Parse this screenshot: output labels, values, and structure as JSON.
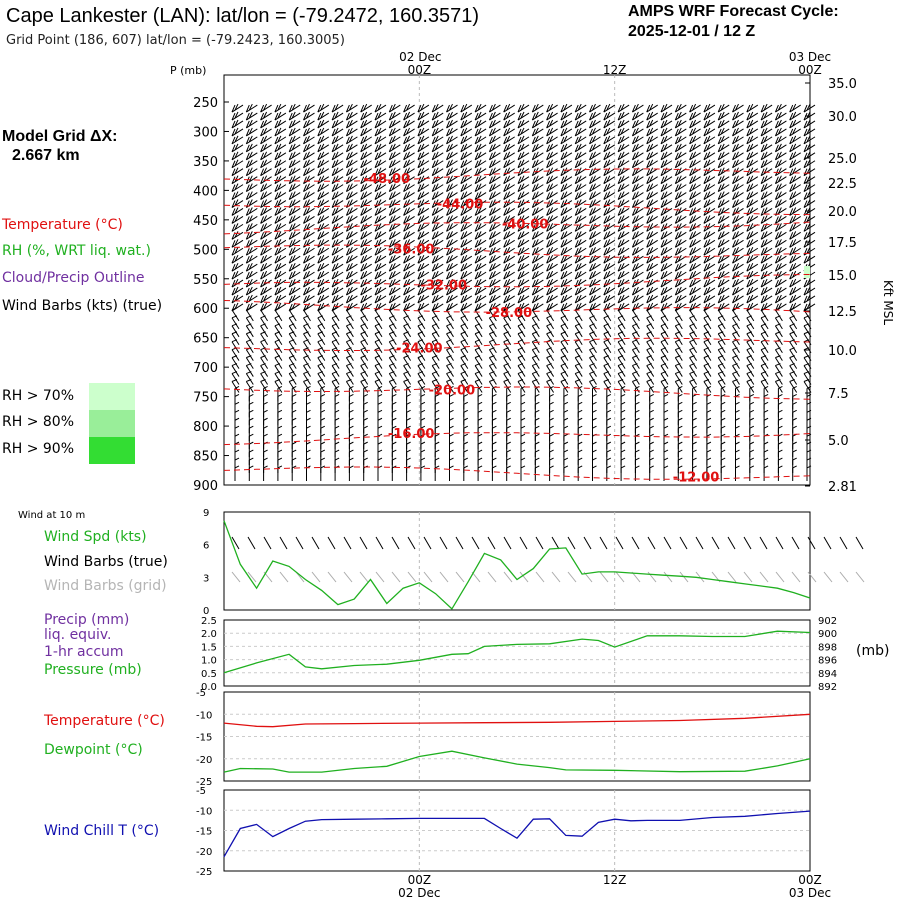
{
  "header": {
    "title": "Cape Lankester (LAN):  lat/lon = (-79.2472, 160.3571)",
    "grid_point": "Grid Point (186, 607) lat/lon = (-79.2423, 160.3005)",
    "cycle_line1": "AMPS WRF Forecast Cycle:",
    "cycle_line2": "2025-12-01 / 12  Z"
  },
  "model_grid": {
    "label": "Model Grid ΔX:",
    "value": "2.667 km"
  },
  "legend": {
    "temperature": "Temperature (°C)",
    "rh": "RH (%, WRT liq. wat.)",
    "cloud": "Cloud/Precip Outline",
    "wind_barbs": "Wind Barbs (kts) (true)",
    "rh70": "RH > 70%",
    "rh80": "RH > 80%",
    "rh90": "RH > 90%"
  },
  "colors": {
    "temperature": "#e01010",
    "rh": "#20b020",
    "cloud": "#7030a0",
    "grid_barbs": "#aaaaaa",
    "windchill": "#1010b0",
    "rh70": "#ccffcc",
    "rh80": "#99ee99",
    "rh90": "#33dd33"
  },
  "time_axis": {
    "top_date_left": "02 Dec",
    "top_date_right": "03 Dec",
    "labels": [
      "00Z",
      "12Z",
      "00Z"
    ],
    "bottom_dates": [
      "02 Dec",
      "03 Dec"
    ]
  },
  "upper_panel": {
    "p_label": "P (mb)",
    "right_label": "Kft MSL"
  },
  "surface_panel": {
    "wind_title": "Wind at 10 m",
    "spd_label": "Wind Spd (kts)",
    "barbs_true": "Wind Barbs (true)",
    "barbs_grid": "Wind Barbs (grid)",
    "precip_label1": "Precip (mm)",
    "precip_label2": "liq. equiv.",
    "precip_label3": "1-hr accum",
    "pressure_label": "Pressure (mb)",
    "pressure_unit": "(mb)",
    "temp_label": "Temperature (°C)",
    "dew_label": "Dewpoint (°C)",
    "windchill_label": "Wind Chill T (°C)"
  },
  "chart_data": [
    {
      "type": "line",
      "name": "upper_air_cross_section",
      "x": [
        0,
        36
      ],
      "xlabels": [
        "00Z",
        "12Z",
        "00Z"
      ],
      "yaxis_pressure_ticks": [
        "250",
        "300",
        "350",
        "400",
        "450",
        "500",
        "550",
        "600",
        "650",
        "700",
        "750",
        "800",
        "850",
        "900"
      ],
      "yaxis_height_ticks": [
        "35.0",
        "30.0",
        "25.0",
        "22.5",
        "20.0",
        "17.5",
        "15.0",
        "12.5",
        "10.0",
        "7.5",
        "5.0",
        "2.81"
      ],
      "ylabel_left": "P (mb)",
      "ylabel_right": "Kft MSL",
      "isotherms": [
        {
          "label": "-48.00",
          "p": 373,
          "label_t": 10
        },
        {
          "label": "-44.00",
          "p": 427,
          "label_t": 14.5
        },
        {
          "label": "-40.00",
          "p": 460,
          "label_t": 18.5
        },
        {
          "label": "-36.00",
          "p": 504,
          "label_t": 11.5
        },
        {
          "label": "-32.00",
          "p": 557,
          "label_t": 13.5
        },
        {
          "label": "-28.00",
          "p": 601,
          "label_t": 17.5
        },
        {
          "label": "-24.00",
          "p": 661,
          "label_t": 12
        },
        {
          "label": "-20.00",
          "p": 740,
          "label_t": 14
        },
        {
          "label": "-16.00",
          "p": 817,
          "label_t": 11.5
        },
        {
          "label": "-12.00",
          "p": 880,
          "label_t": 29
        }
      ]
    },
    {
      "type": "line",
      "name": "wind_speed_10m",
      "ylabel": "Wind Spd (kts)",
      "ylim": [
        0,
        9
      ],
      "yticks": [
        "0",
        "3",
        "6",
        "9"
      ],
      "x": [
        0,
        1,
        2,
        3,
        4,
        5,
        6,
        7,
        8,
        9,
        10,
        11,
        12,
        13,
        14,
        15,
        16,
        17,
        18,
        19,
        20,
        21,
        22,
        23,
        24,
        25,
        26,
        27,
        28,
        29,
        30,
        31,
        32,
        33,
        34,
        35,
        36
      ],
      "values": [
        8.2,
        4.2,
        2.0,
        4.5,
        4.0,
        2.8,
        1.8,
        0.5,
        1.0,
        2.8,
        0.6,
        2.0,
        2.5,
        1.5,
        0.1,
        2.6,
        5.2,
        4.6,
        2.8,
        3.8,
        5.6,
        5.7,
        3.3,
        3.5,
        3.5,
        3.4,
        3.3,
        3.2,
        3.1,
        3.0,
        2.8,
        2.6,
        2.4,
        2.2,
        2.0,
        1.6,
        1.1
      ]
    },
    {
      "type": "line",
      "name": "pressure",
      "ylabel": "Pressure (mb)",
      "yticks_left": [
        "0.0",
        "0.5",
        "1.0",
        "1.5",
        "2.0",
        "2.5"
      ],
      "yticks_right": [
        "892",
        "894",
        "896",
        "898",
        "900",
        "902"
      ],
      "ylim": [
        892,
        902
      ],
      "x": [
        0,
        2,
        4,
        5,
        6,
        8,
        10,
        12,
        14,
        15,
        16,
        18,
        20,
        22,
        23,
        24,
        26,
        28,
        30,
        32,
        34,
        36
      ],
      "values": [
        894.0,
        895.5,
        896.8,
        894.9,
        894.6,
        895.1,
        895.3,
        895.9,
        896.8,
        896.9,
        898.0,
        898.3,
        898.4,
        899.1,
        898.9,
        897.9,
        899.6,
        899.6,
        899.5,
        899.5,
        900.3,
        900.1
      ]
    },
    {
      "type": "line",
      "name": "temperature_dewpoint",
      "ylim": [
        -25,
        -5
      ],
      "yticks": [
        "-5",
        "-10",
        "-15",
        "-20",
        "-25"
      ],
      "series": [
        {
          "name": "Temperature (°C)",
          "x": [
            0,
            2,
            3,
            5,
            8,
            12,
            16,
            20,
            24,
            28,
            32,
            36
          ],
          "values": [
            -12.0,
            -12.7,
            -12.8,
            -12.2,
            -12.1,
            -12.0,
            -11.9,
            -11.8,
            -11.6,
            -11.4,
            -10.9,
            -10.0
          ]
        },
        {
          "name": "Dewpoint (°C)",
          "x": [
            0,
            1,
            3,
            4,
            6,
            8,
            10,
            12,
            14,
            16,
            18,
            20,
            21,
            24,
            28,
            32,
            34,
            36
          ],
          "values": [
            -23.0,
            -22.2,
            -22.3,
            -23.0,
            -23.0,
            -22.2,
            -21.7,
            -19.5,
            -18.3,
            -19.8,
            -21.2,
            -22.0,
            -22.5,
            -22.6,
            -22.9,
            -22.8,
            -21.6,
            -20.0
          ]
        }
      ]
    },
    {
      "type": "line",
      "name": "wind_chill",
      "ylabel": "Wind Chill T (°C)",
      "ylim": [
        -25,
        -5
      ],
      "yticks": [
        "-5",
        "-10",
        "-15",
        "-20",
        "-25"
      ],
      "x": [
        0,
        1,
        2,
        3,
        4,
        5,
        6,
        8,
        10,
        12,
        14,
        16,
        17,
        18,
        19,
        20,
        21,
        22,
        23,
        24,
        25,
        26,
        28,
        30,
        32,
        34,
        36
      ],
      "values": [
        -21.5,
        -14.5,
        -13.5,
        -16.5,
        -14.5,
        -12.7,
        -12.3,
        -12.2,
        -12.1,
        -12.0,
        -12.0,
        -12.0,
        -14.5,
        -16.9,
        -12.2,
        -12.1,
        -16.2,
        -16.4,
        -13.0,
        -12.2,
        -12.6,
        -12.5,
        -12.5,
        -11.8,
        -11.5,
        -10.8,
        -10.2
      ]
    }
  ]
}
